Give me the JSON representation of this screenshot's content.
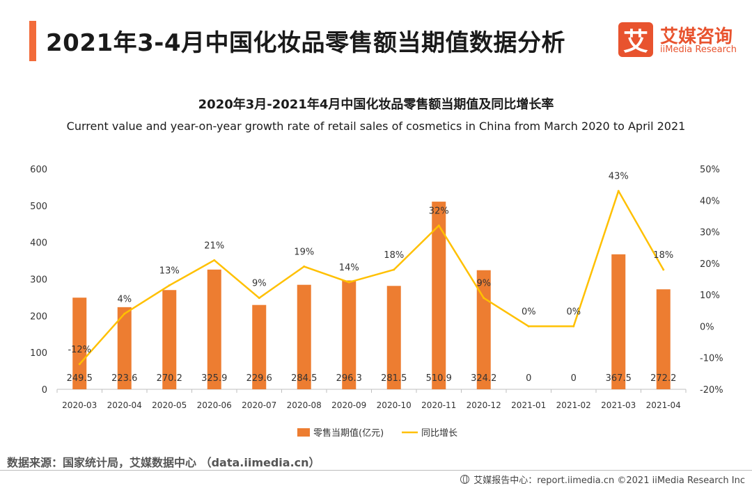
{
  "header": {
    "title": "2021年3-4月中国化妆品零售额当期值数据分析"
  },
  "logo": {
    "mark": "艾",
    "name_cn": "艾媒咨询",
    "name_en": "iiMedia Research"
  },
  "chart_data": {
    "type": "bar",
    "title": "2020年3月-2021年4月中国化妆品零售额当期值及同比增长率",
    "subtitle": "Current value and year-on-year growth rate of retail sales of cosmetics in China from March 2020 to April 2021",
    "categories": [
      "2020-03",
      "2020-04",
      "2020-05",
      "2020-06",
      "2020-07",
      "2020-08",
      "2020-09",
      "2020-10",
      "2020-11",
      "2020-12",
      "2021-01",
      "2021-02",
      "2021-03",
      "2021-04"
    ],
    "series": [
      {
        "name": "零售当期值(亿元)",
        "type": "bar",
        "axis": "left",
        "color": "#ed7d31",
        "values": [
          249.5,
          223.6,
          270.2,
          325.9,
          229.6,
          284.5,
          296.3,
          281.5,
          510.9,
          324.2,
          0,
          0,
          367.5,
          272.2
        ],
        "labels": [
          "249.5",
          "223.6",
          "270.2",
          "325.9",
          "229.6",
          "284.5",
          "296.3",
          "281.5",
          "510.9",
          "324.2",
          "0",
          "0",
          "367.5",
          "272.2"
        ]
      },
      {
        "name": "同比增长",
        "type": "line",
        "axis": "right",
        "color": "#ffc000",
        "values": [
          -12,
          4,
          13,
          21,
          9,
          19,
          14,
          18,
          32,
          9,
          0,
          0,
          43,
          18
        ],
        "labels": [
          "-12%",
          "4%",
          "13%",
          "21%",
          "9%",
          "19%",
          "14%",
          "18%",
          "32%",
          "9%",
          "0%",
          "0%",
          "43%",
          "18%"
        ]
      }
    ],
    "y_left": {
      "min": 0,
      "max": 600,
      "ticks": [
        "0",
        "100",
        "200",
        "300",
        "400",
        "500",
        "600"
      ]
    },
    "y_right": {
      "min": -20,
      "max": 50,
      "ticks": [
        "-20%",
        "-10%",
        "0%",
        "10%",
        "20%",
        "30%",
        "40%",
        "50%"
      ]
    },
    "grid": false,
    "legend_position": "bottom"
  },
  "source": "数据来源：国家统计局，艾媒数据中心 （data.iimedia.cn）",
  "footer": "艾媒报告中心：report.iimedia.cn  ©2021  iiMedia Research  Inc"
}
